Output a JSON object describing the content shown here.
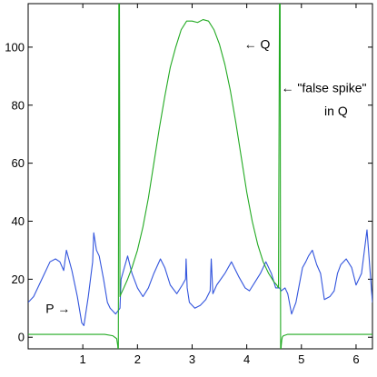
{
  "chart_data": {
    "type": "line",
    "title": "",
    "xlabel": "",
    "ylabel": "",
    "xlim": [
      0,
      6.3
    ],
    "ylim": [
      -4,
      115
    ],
    "xticks": [
      1,
      2,
      3,
      4,
      5,
      6
    ],
    "yticks": [
      0,
      20,
      40,
      60,
      80,
      100
    ],
    "xtick_labels": [
      "1",
      "2",
      "3",
      "4",
      "5",
      "6"
    ],
    "ytick_labels": [
      "0",
      "20",
      "40",
      "60",
      "80",
      "100"
    ],
    "grid": false,
    "colors": {
      "P": "#3355dd",
      "Q": "#22aa22"
    },
    "series": [
      {
        "name": "P",
        "x": [
          0,
          0.1,
          0.2,
          0.3,
          0.4,
          0.5,
          0.58,
          0.65,
          0.7,
          0.8,
          0.9,
          0.98,
          1.02,
          1.1,
          1.18,
          1.2,
          1.25,
          1.3,
          1.38,
          1.45,
          1.5,
          1.6,
          1.68,
          1.7,
          1.76,
          1.82,
          1.9,
          2.0,
          2.1,
          2.2,
          2.3,
          2.42,
          2.5,
          2.6,
          2.72,
          2.82,
          2.88,
          2.89,
          2.91,
          2.95,
          3.05,
          3.15,
          3.25,
          3.33,
          3.35,
          3.38,
          3.45,
          3.6,
          3.72,
          3.85,
          3.97,
          4.05,
          4.15,
          4.25,
          4.35,
          4.45,
          4.53,
          4.6,
          4.63,
          4.7,
          4.75,
          4.82,
          4.9,
          4.98,
          5.02,
          5.08,
          5.13,
          5.2,
          5.28,
          5.35,
          5.42,
          5.52,
          5.6,
          5.66,
          5.72,
          5.82,
          5.92,
          6.0,
          6.1,
          6.2,
          6.3
        ],
        "y": [
          12,
          14,
          18,
          22,
          26,
          27,
          26,
          23,
          30,
          23,
          14,
          5,
          4,
          14,
          26,
          36,
          30,
          28,
          20,
          12,
          10,
          8,
          10,
          20,
          24,
          28,
          22,
          17,
          14,
          17,
          22,
          27,
          24,
          18,
          15,
          18,
          20,
          27,
          17,
          12,
          10,
          11,
          13,
          16,
          27,
          15,
          18,
          22,
          26,
          21,
          17,
          16,
          19,
          22,
          26,
          22,
          17,
          17,
          16,
          17,
          15,
          8,
          12,
          20,
          24,
          26,
          28,
          30,
          25,
          22,
          13,
          14,
          16,
          22,
          25,
          27,
          24,
          18,
          22,
          37,
          12
        ]
      },
      {
        "name": "Q",
        "x": [
          0,
          0.5,
          1.0,
          1.4,
          1.55,
          1.62,
          1.64,
          1.65,
          1.66,
          1.67,
          1.68,
          1.7,
          1.75,
          1.82,
          1.9,
          2.0,
          2.1,
          2.2,
          2.3,
          2.4,
          2.5,
          2.6,
          2.7,
          2.8,
          2.9,
          3.0,
          3.1,
          3.2,
          3.3,
          3.4,
          3.5,
          3.6,
          3.7,
          3.8,
          3.9,
          4.0,
          4.1,
          4.2,
          4.3,
          4.4,
          4.5,
          4.55,
          4.58,
          4.6,
          4.61,
          4.62,
          4.63,
          4.64,
          4.65,
          4.67,
          4.75,
          4.9,
          5.3,
          5.8,
          6.3
        ],
        "y": [
          1,
          1,
          1,
          1,
          0.5,
          -0.5,
          -3,
          -6,
          120,
          120,
          14,
          15,
          17,
          20,
          24,
          30,
          38,
          48,
          60,
          72,
          83,
          93,
          100,
          106,
          109,
          109,
          108.5,
          109.5,
          109,
          106,
          101,
          94,
          85,
          74,
          62,
          50,
          40,
          32,
          26,
          22,
          19,
          18,
          17,
          120,
          120,
          -6,
          -3,
          -1,
          0,
          0.5,
          1,
          1,
          1,
          1,
          1
        ]
      }
    ],
    "annotations": [
      {
        "text": "←  Q",
        "x": 3.95,
        "y": 101
      },
      {
        "text": "←  \"false spike\"",
        "x": 4.63,
        "y": 86
      },
      {
        "text": "in Q",
        "x": 5.42,
        "y": 78
      },
      {
        "text": "P →",
        "x": 0.32,
        "y": 10
      }
    ]
  }
}
